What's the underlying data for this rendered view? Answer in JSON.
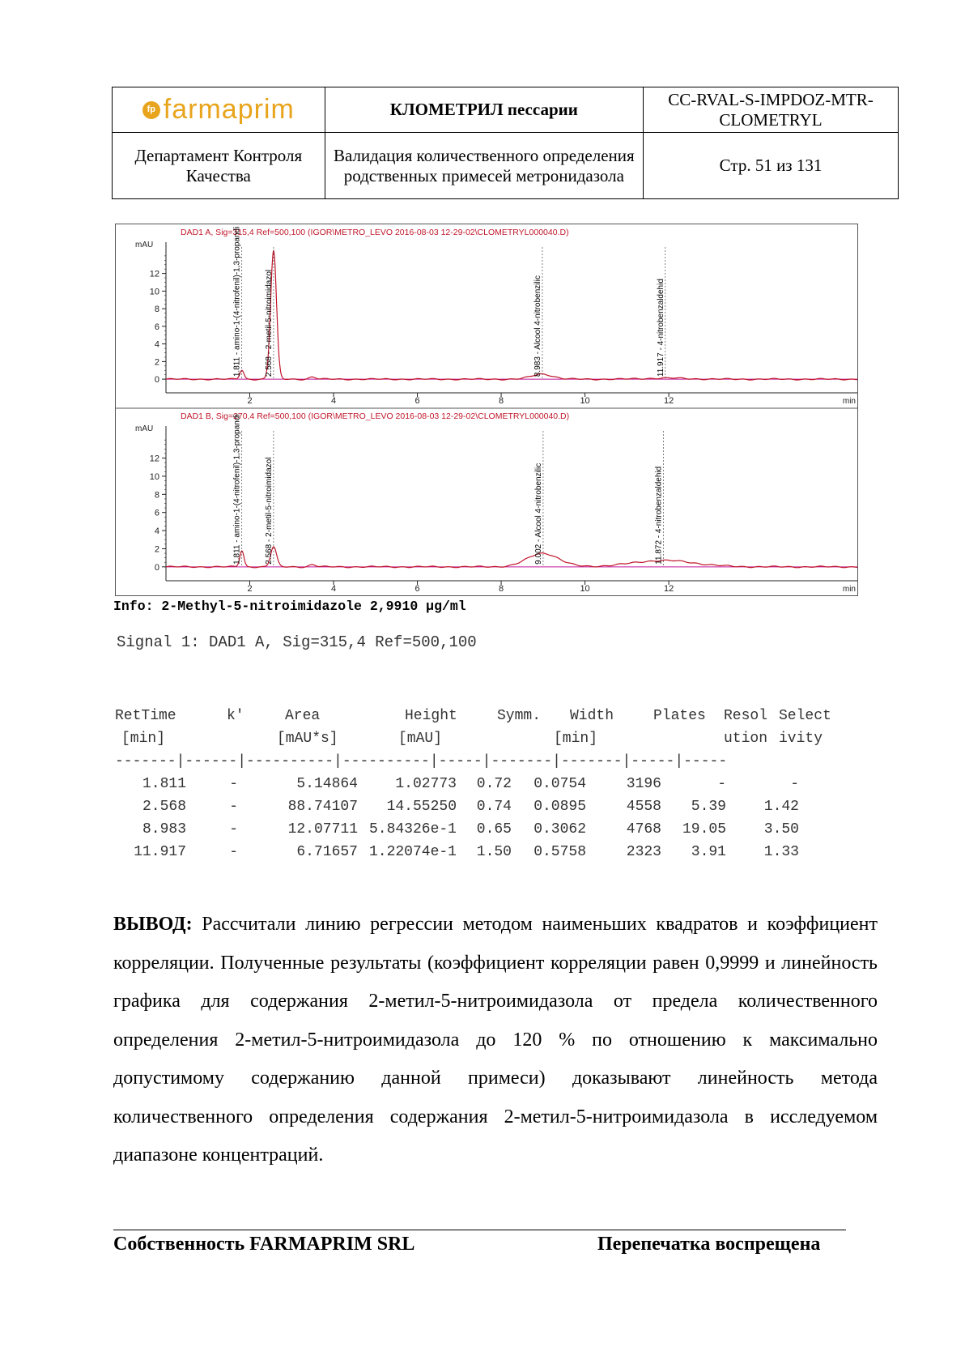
{
  "header": {
    "logo_text": "farmaprim",
    "logo_mark": "fp",
    "title": "КЛОМЕТРИЛ пессарии",
    "doc_code": "CC-RVAL-S-IMPDOZ-MTR-CLOMETRYL",
    "department": "Департамент Контроля Качества",
    "subject": "Валидация количественного определения родственных примесей метронидазола",
    "page": "Стр. 51 из 131"
  },
  "chromatogram": {
    "panels": [
      {
        "title": "DAD1 A, Sig=315,4 Ref=500,100 (IGOR\\METRO_LEVO 2016-08-03 12-29-02\\CLOMETRYL000040.D)",
        "yunit": "mAU",
        "peaks": [
          {
            "label": "1.811 - amino-1-(4-nitrofenil)-1,3-propandi",
            "rt": 1.811,
            "height": 1.03
          },
          {
            "label": "2.568 - 2-metil-5-nitroimidazol",
            "rt": 2.568,
            "height": 14.55
          },
          {
            "label": "8.983 - Alcool 4-nitrobenzilic",
            "rt": 8.983,
            "height": 0.58
          },
          {
            "label": "11.917 - 4-nitrobenzaldehid",
            "rt": 11.917,
            "height": 0.12
          }
        ]
      },
      {
        "title": "DAD1 B, Sig=270,4 Ref=500,100 (IGOR\\METRO_LEVO 2016-08-03 12-29-02\\CLOMETRYL000040.D)",
        "yunit": "mAU",
        "peaks": [
          {
            "label": "1.811 - amino-1-(4-nitrofenil)-1,3-propandi",
            "rt": 1.811,
            "height": 1.8
          },
          {
            "label": "2.568 - 2-metil-5-nitroimidazol",
            "rt": 2.568,
            "height": 2.2
          },
          {
            "label": "9.002 - Alcool 4-nitrobenzilic",
            "rt": 9.002,
            "height": 1.5
          },
          {
            "label": "11.872 - 4-nitrobenzaldehid",
            "rt": 11.872,
            "height": 0.7
          }
        ]
      }
    ],
    "xunit": "min",
    "xticks": [
      "2",
      "4",
      "6",
      "8",
      "10",
      "12"
    ],
    "yticks": [
      "0",
      "2",
      "4",
      "6",
      "8",
      "10",
      "12"
    ],
    "xrange": [
      0,
      16.5
    ],
    "yrange": [
      -1,
      15
    ]
  },
  "info": "Info: 2-Methyl-5-nitroimidazole 2,9910 µg/ml",
  "signal": "Signal 1: DAD1 A, Sig=315,4 Ref=500,100",
  "table": {
    "header1": [
      "RetTime",
      "k'",
      "Area",
      "Height",
      "Symm.",
      "Width",
      "Plates",
      "Resol",
      "Select"
    ],
    "header2": [
      "[min]",
      "",
      "[mAU*s]",
      "[mAU]",
      "",
      "[min]",
      "",
      "ution",
      "ivity"
    ],
    "separator": "-------|------|----------|----------|-----|-------|-------|-----|-----",
    "rows": [
      [
        "1.811",
        "-",
        "5.14864",
        "1.02773",
        "0.72",
        "0.0754",
        "3196",
        "-",
        "-"
      ],
      [
        "2.568",
        "-",
        "88.74107",
        "14.55250",
        "0.74",
        "0.0895",
        "4558",
        "5.39",
        "1.42"
      ],
      [
        "8.983",
        "-",
        "12.07711",
        "5.84326e-1",
        "0.65",
        "0.3062",
        "4768",
        "19.05",
        "3.50"
      ],
      [
        "11.917",
        "-",
        "6.71657",
        "1.22074e-1",
        "1.50",
        "0.5758",
        "2323",
        "3.91",
        "1.33"
      ]
    ]
  },
  "conclusion": {
    "label": "ВЫВОД:",
    "text": "Рассчитали линию регрессии методом наименьших квадратов и коэффициент корреляции. Полученные результаты (коэффициент корреляции равен 0,9999 и линейность графика для содержания 2-метил-5-нитроимидазола от предела количественного определения 2-метил-5-нитроимидазола до 120 % по отношению к максимально допустимому содержанию данной примеси) доказывают линейность метода количественного определения содержания 2-метил-5-нитроимидазола в исследуемом диапазоне концентраций."
  },
  "footer": {
    "left": "Собственность FARMAPRIM SRL",
    "right": "Перепечатка воспрещена"
  }
}
